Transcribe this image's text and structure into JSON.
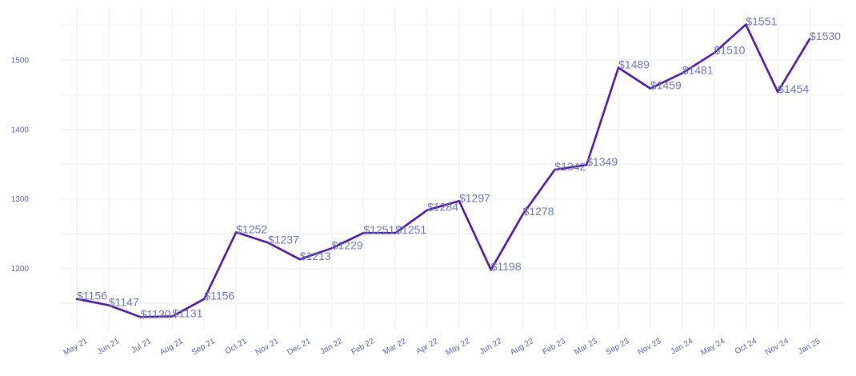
{
  "chart_data": {
    "type": "line",
    "title": "",
    "xlabel": "",
    "ylabel": "",
    "ylim": [
      1100,
      1565
    ],
    "y_ticks": [
      1200,
      1300,
      1400,
      1500
    ],
    "grid": true,
    "value_prefix": "$",
    "line_color": "#4a1aa6",
    "label_color": "#6e76b2",
    "categories": [
      "May 21",
      "Jun 21",
      "Jul 21",
      "Aug 21",
      "Sep 21",
      "Oct 21",
      "Nov 21",
      "Dec 21",
      "Jan 22",
      "Feb 22",
      "Mar 22",
      "Apr 22",
      "May 22",
      "Jun 22",
      "Aug 22",
      "Feb 23",
      "Mar 23",
      "Sep 23",
      "Nov 23",
      "Jan 24",
      "May 24",
      "Oct 24",
      "Nov 24",
      "Jan 25"
    ],
    "values": [
      1156,
      1147,
      1130,
      1131,
      1156,
      1252,
      1237,
      1213,
      1229,
      1251,
      1251,
      1284,
      1297,
      1198,
      1278,
      1342,
      1349,
      1489,
      1459,
      1481,
      1510,
      1551,
      1454,
      1530
    ]
  }
}
